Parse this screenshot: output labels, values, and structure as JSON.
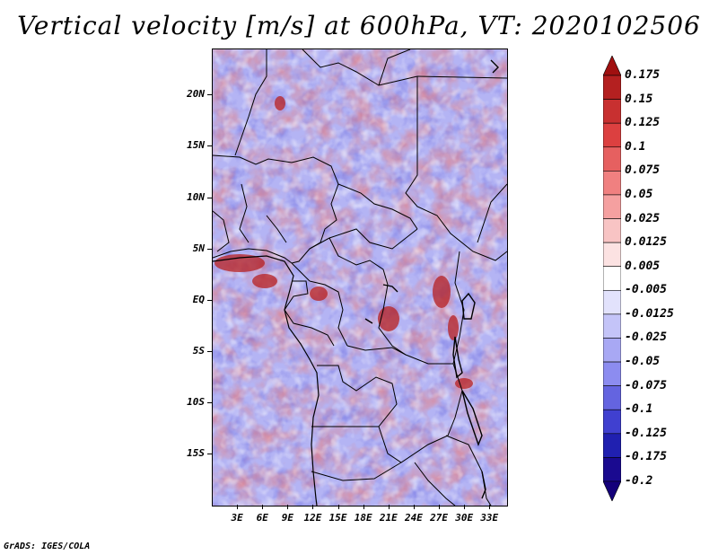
{
  "title": "Vertical velocity [m/s] at 600hPa, VT: 2020102506",
  "credit": "GrADS: IGES/COLA",
  "map": {
    "lon_range": [
      0,
      35
    ],
    "lat_range": [
      -20,
      24.5
    ],
    "lat_ticks": [
      {
        "value": 20,
        "label": "20N"
      },
      {
        "value": 15,
        "label": "15N"
      },
      {
        "value": 10,
        "label": "10N"
      },
      {
        "value": 5,
        "label": "5N"
      },
      {
        "value": 0,
        "label": "EQ"
      },
      {
        "value": -5,
        "label": "5S"
      },
      {
        "value": -10,
        "label": "10S"
      },
      {
        "value": -15,
        "label": "15S"
      }
    ],
    "lon_ticks": [
      {
        "value": 3,
        "label": "3E"
      },
      {
        "value": 6,
        "label": "6E"
      },
      {
        "value": 9,
        "label": "9E"
      },
      {
        "value": 12,
        "label": "12E"
      },
      {
        "value": 15,
        "label": "15E"
      },
      {
        "value": 18,
        "label": "18E"
      },
      {
        "value": 21,
        "label": "21E"
      },
      {
        "value": 24,
        "label": "24E"
      },
      {
        "value": 27,
        "label": "27E"
      },
      {
        "value": 30,
        "label": "30E"
      },
      {
        "value": 33,
        "label": "33E"
      }
    ]
  },
  "colorbar": {
    "levels": [
      "0.175",
      "0.15",
      "0.125",
      "0.1",
      "0.075",
      "0.05",
      "0.025",
      "0.0125",
      "0.005",
      "-0.005",
      "-0.0125",
      "-0.025",
      "-0.05",
      "-0.075",
      "-0.1",
      "-0.125",
      "-0.175",
      "-0.2"
    ],
    "colors": [
      "#a01010",
      "#b42020",
      "#c83030",
      "#dc4040",
      "#e66060",
      "#f08080",
      "#f5a0a0",
      "#f8c4c4",
      "#fce2e2",
      "#ffffff",
      "#e2e2fc",
      "#c4c4f8",
      "#a8a8f4",
      "#8c8cf0",
      "#6464e0",
      "#4040d0",
      "#2020b0",
      "#1a0a90",
      "#14007a"
    ]
  }
}
